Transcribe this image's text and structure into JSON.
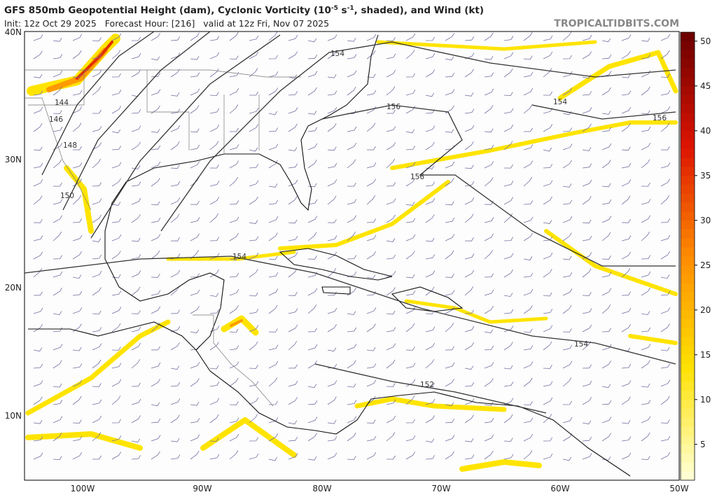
{
  "header": {
    "title_parts": [
      "GFS 850mb Geopotential Height (dam), Cyclonic Vorticity (10",
      "-5",
      " s",
      "-1",
      ", shaded), and Wind (kt)"
    ],
    "init_line": "Init: 12z Oct 29 2025   Forecast Hour: [216]   valid at 12z Fri, Nov 07 2025",
    "watermark": "TROPICALTIDBITS.COM"
  },
  "map": {
    "lat_labels": [
      "40N",
      "30N",
      "20N",
      "10N"
    ],
    "lon_labels": [
      "100W",
      "90W",
      "80W",
      "70W",
      "60W",
      "50W"
    ],
    "contour_labels": [
      "144",
      "146",
      "148",
      "150",
      "154",
      "156",
      "154",
      "156",
      "156",
      "154",
      "154",
      "152"
    ]
  },
  "colorbar": {
    "range": [
      1,
      51
    ],
    "ticks": [
      5,
      10,
      15,
      20,
      25,
      30,
      35,
      40,
      45,
      50
    ]
  }
}
